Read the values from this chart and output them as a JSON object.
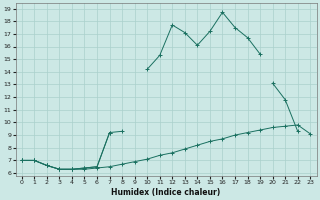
{
  "xlabel": "Humidex (Indice chaleur)",
  "bg_color": "#cce8e5",
  "grid_color": "#aad0cc",
  "line_color": "#1a7060",
  "xlim": [
    -0.5,
    23.5
  ],
  "ylim": [
    5.8,
    19.4
  ],
  "xticks": [
    0,
    1,
    2,
    3,
    4,
    5,
    6,
    7,
    8,
    9,
    10,
    11,
    12,
    13,
    14,
    15,
    16,
    17,
    18,
    19,
    20,
    21,
    22,
    23
  ],
  "yticks": [
    6,
    7,
    8,
    9,
    10,
    11,
    12,
    13,
    14,
    15,
    16,
    17,
    18,
    19
  ],
  "line1_x": [
    0,
    1,
    2,
    3,
    4,
    5,
    6,
    7,
    8,
    9,
    10,
    11,
    12,
    13,
    14,
    15,
    16,
    17,
    18,
    19,
    20,
    21,
    22,
    23
  ],
  "line1_y": [
    7.0,
    7.0,
    6.6,
    6.3,
    6.3,
    6.3,
    6.4,
    6.5,
    6.7,
    6.9,
    7.1,
    7.4,
    7.6,
    7.9,
    8.2,
    8.5,
    8.7,
    9.0,
    9.2,
    9.4,
    9.6,
    9.7,
    9.8,
    9.1
  ],
  "line2_x": [
    0,
    1,
    2,
    3,
    4,
    5,
    6,
    7,
    8,
    9,
    10,
    11,
    12,
    13,
    14,
    15,
    16,
    17,
    18,
    19,
    20,
    21,
    22,
    23
  ],
  "line2_y": [
    7.0,
    7.0,
    6.6,
    6.3,
    6.3,
    6.4,
    6.5,
    9.2,
    9.3,
    null,
    null,
    null,
    null,
    null,
    null,
    null,
    null,
    null,
    null,
    null,
    13.1,
    11.8,
    9.3,
    null
  ],
  "line3_x": [
    0,
    1,
    2,
    3,
    4,
    5,
    6,
    7,
    8,
    9,
    10,
    11,
    12,
    13,
    14,
    15,
    16,
    17,
    18,
    19,
    20,
    21,
    22,
    23
  ],
  "line3_y": [
    7.0,
    7.0,
    6.6,
    6.3,
    6.3,
    6.4,
    6.5,
    9.2,
    null,
    null,
    14.2,
    15.3,
    17.7,
    17.1,
    16.1,
    17.2,
    18.7,
    17.5,
    16.7,
    15.4,
    null,
    null,
    null,
    null
  ]
}
